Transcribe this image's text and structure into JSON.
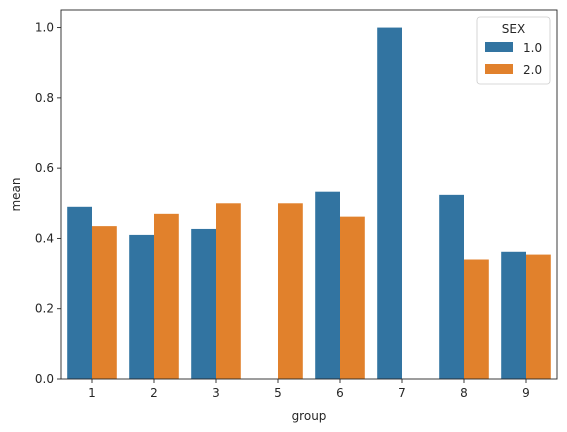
{
  "chart_data": {
    "type": "bar",
    "xlabel": "group",
    "ylabel": "mean",
    "categories": [
      "1",
      "2",
      "3",
      "5",
      "6",
      "7",
      "8",
      "9"
    ],
    "ylim": [
      0,
      1.05
    ],
    "yticks": [
      0.0,
      0.2,
      0.4,
      0.6,
      0.8,
      1.0
    ],
    "ytick_labels": [
      "0.0",
      "0.2",
      "0.4",
      "0.6",
      "0.8",
      "1.0"
    ],
    "series": [
      {
        "name": "1.0",
        "color": "#3274a1",
        "values": [
          0.49,
          0.41,
          0.427,
          null,
          0.533,
          1.0,
          0.524,
          0.362
        ]
      },
      {
        "name": "2.0",
        "color": "#e1812c",
        "values": [
          0.435,
          0.47,
          0.5,
          0.5,
          0.462,
          null,
          0.34,
          0.354
        ]
      }
    ],
    "legend": {
      "title": "SEX",
      "position": "top-right"
    },
    "grid": false
  }
}
